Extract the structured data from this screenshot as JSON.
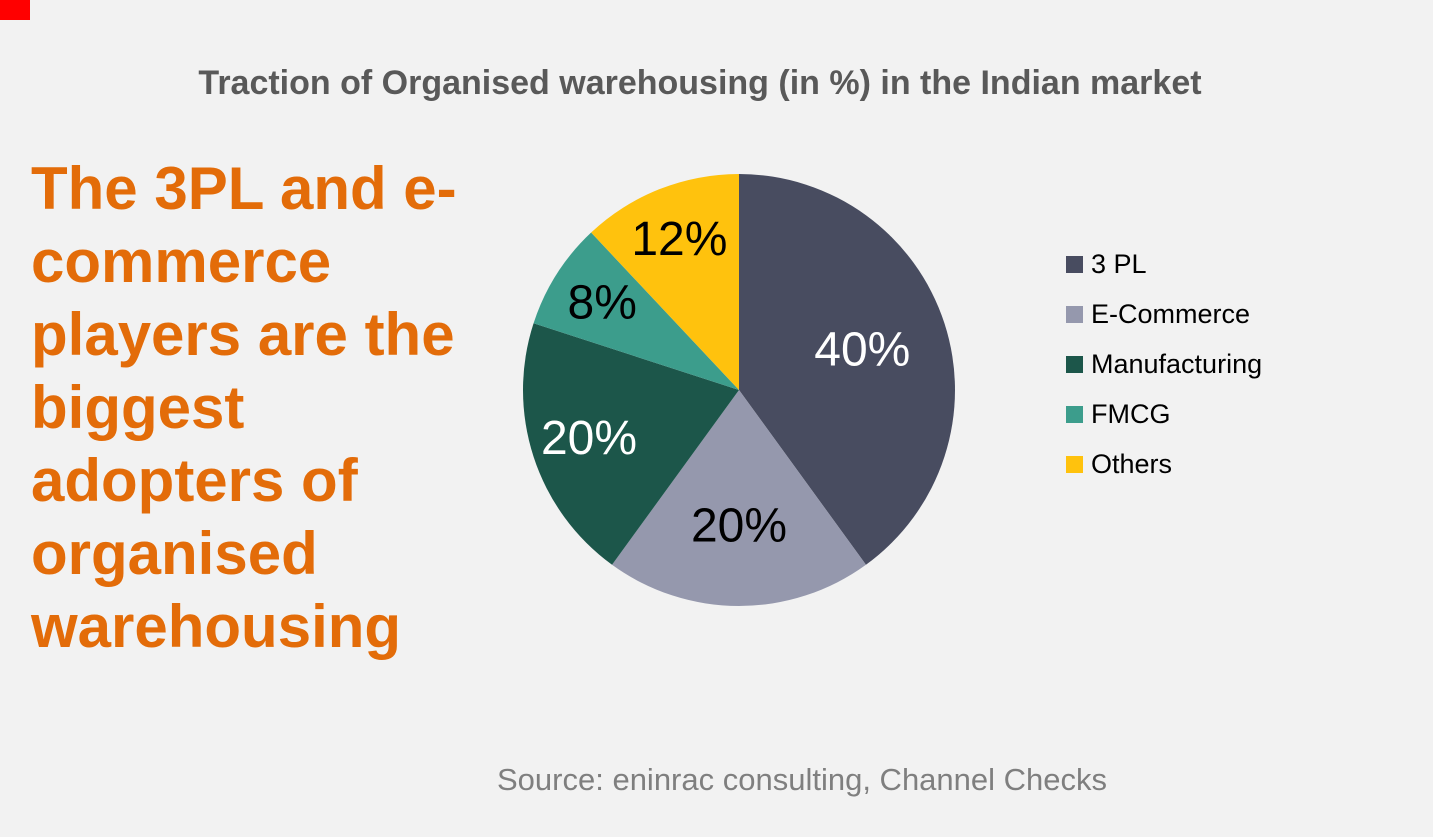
{
  "page": {
    "background_color": "#F2F2F2",
    "record_indicator_color": "#FF0000"
  },
  "title": {
    "text": "Traction of Organised warehousing (in %) in the Indian market",
    "color": "#595959"
  },
  "headline": {
    "text": "The 3PL and e-commerce players are the biggest adopters of organised warehousing",
    "lines": [
      "The 3PL and e-",
      "commerce",
      "players are the",
      "biggest",
      "adopters of",
      "organised",
      "warehousing"
    ],
    "color": "#E36C09"
  },
  "source": {
    "text": "Source: eninrac consulting, Channel Checks",
    "color": "#7F7F7F"
  },
  "chart_data": {
    "type": "pie",
    "title": "Traction of Organised warehousing (in %) in the Indian market",
    "start_angle_deg": 0,
    "direction": "clockwise",
    "legend_position": "right",
    "radius_px": 216,
    "slices": [
      {
        "label": "3 PL",
        "value": 40,
        "display": "40%",
        "color": "#484C60",
        "label_color": "#FFFFFF",
        "label_radius_frac": 0.6
      },
      {
        "label": "E-Commerce",
        "value": 20,
        "display": "20%",
        "color": "#9598AD",
        "label_color": "#000000",
        "label_radius_frac": 0.63
      },
      {
        "label": "Manufacturing",
        "value": 20,
        "display": "20%",
        "color": "#1C564A",
        "label_color": "#FFFFFF",
        "label_radius_frac": 0.73
      },
      {
        "label": "FMCG",
        "value": 8,
        "display": "8%",
        "color": "#3C9D8C",
        "label_color": "#000000",
        "label_radius_frac": 0.75
      },
      {
        "label": "Others",
        "value": 12,
        "display": "12%",
        "color": "#FFC20D",
        "label_color": "#000000",
        "label_radius_frac": 0.75
      }
    ]
  }
}
